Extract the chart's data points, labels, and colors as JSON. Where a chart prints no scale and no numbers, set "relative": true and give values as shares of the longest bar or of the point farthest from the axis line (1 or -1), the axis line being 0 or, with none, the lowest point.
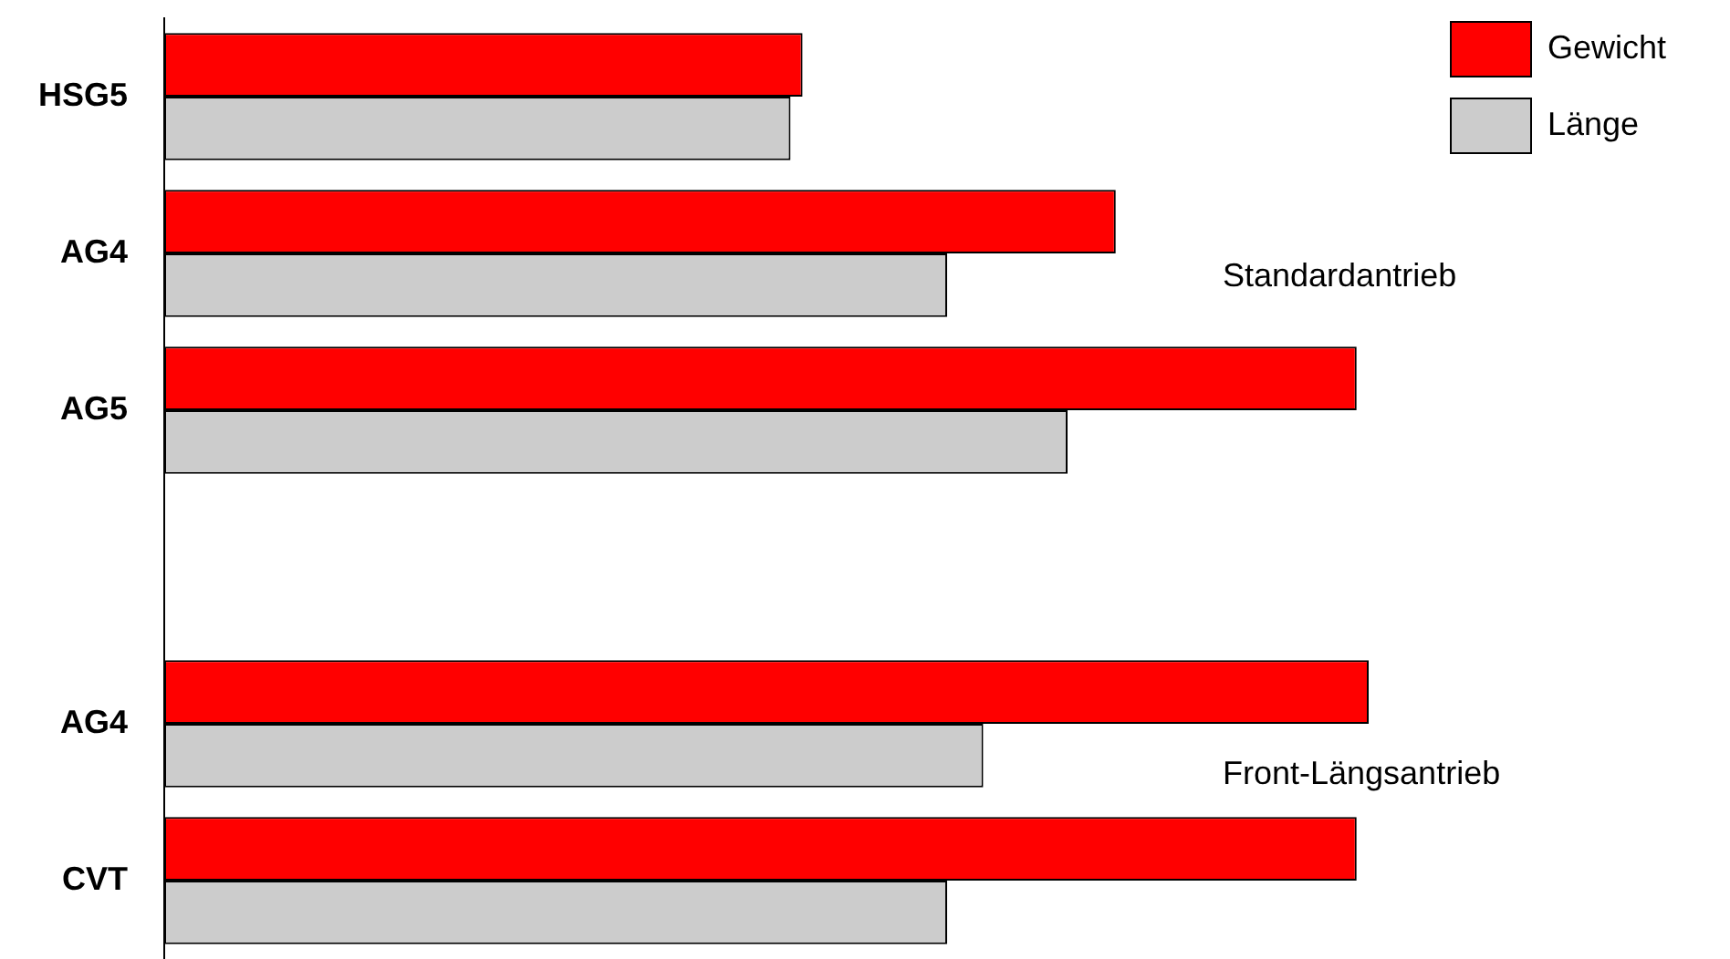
{
  "chart_data": {
    "type": "bar",
    "orientation": "horizontal",
    "relative": true,
    "categories": [
      "HSG5",
      "AG4",
      "AG5",
      null,
      "AG4",
      "CVT"
    ],
    "series": [
      {
        "name": "Gewicht",
        "color": "#ff0000",
        "values": [
          0.53,
          0.79,
          0.99,
          null,
          1,
          0.99
        ]
      },
      {
        "name": "Länge",
        "color": "#cccccc",
        "values": [
          0.52,
          0.65,
          0.75,
          null,
          0.68,
          0.65
        ]
      }
    ],
    "legend": "top right",
    "annotations": [
      "Standardantrieb",
      "Front-Längsantrieb"
    ]
  }
}
